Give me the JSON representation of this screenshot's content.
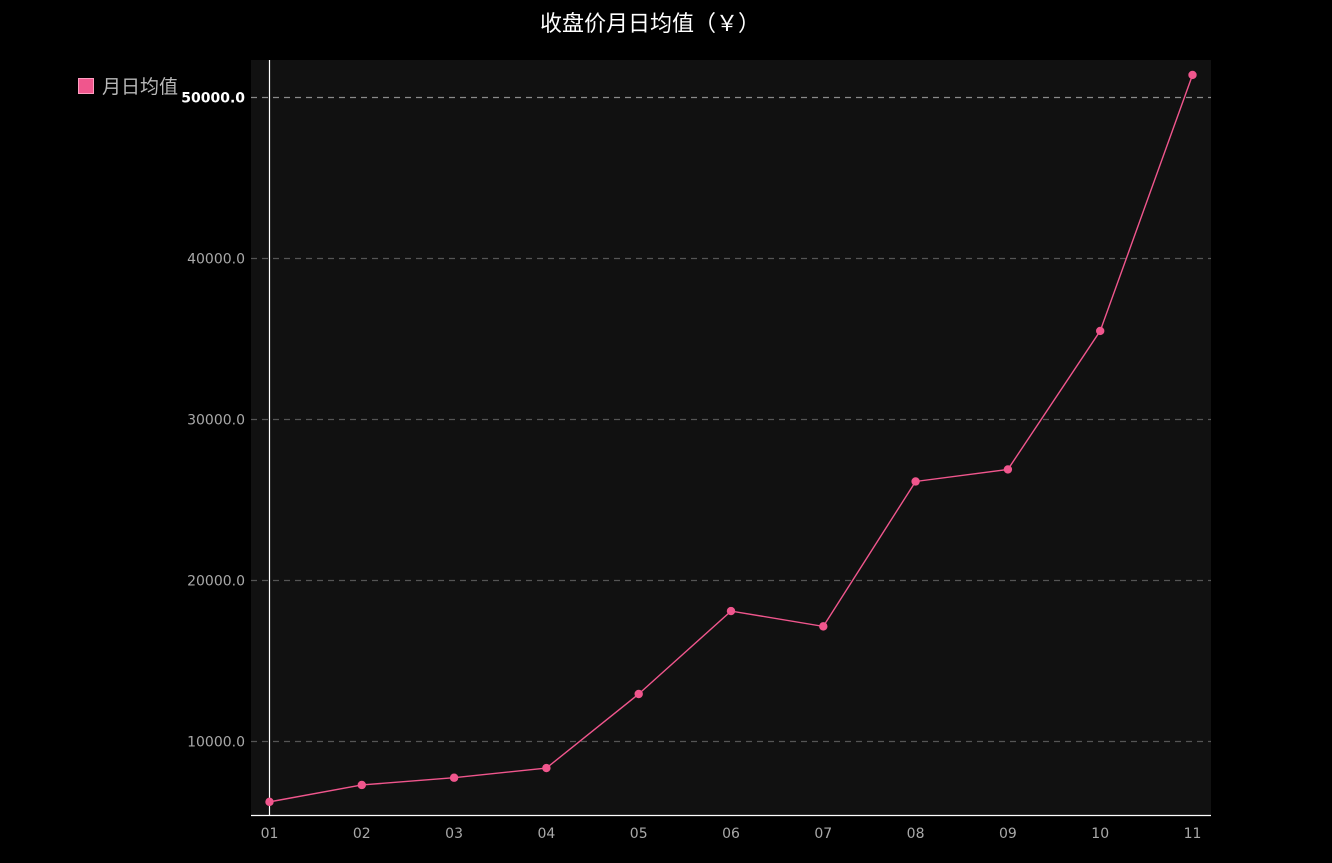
{
  "chart_data": {
    "type": "line",
    "title": "收盘价月日均值（￥）",
    "xlabel": "",
    "ylabel": "",
    "categories": [
      "01",
      "02",
      "03",
      "04",
      "05",
      "06",
      "07",
      "08",
      "09",
      "10",
      "11"
    ],
    "series": [
      {
        "name": "月日均值",
        "values": [
          6250,
          7300,
          7750,
          8350,
          12950,
          18100,
          17150,
          26150,
          26900,
          35500,
          51400
        ],
        "color": "#f0568d"
      }
    ],
    "y_ticks": [
      "10000.0",
      "20000.0",
      "30000.0",
      "40000.0",
      "50000.0"
    ],
    "y_tick_values": [
      10000,
      20000,
      30000,
      40000,
      50000
    ],
    "ylim": [
      5350,
      52300
    ],
    "grid": true,
    "legend_position": "top-left",
    "colors": {
      "background": "#000000",
      "plot_background": "#111111",
      "grid": "#555555",
      "axis": "#ffffff",
      "tick_label": "#a8a8a8",
      "title": "#ffffff"
    }
  }
}
